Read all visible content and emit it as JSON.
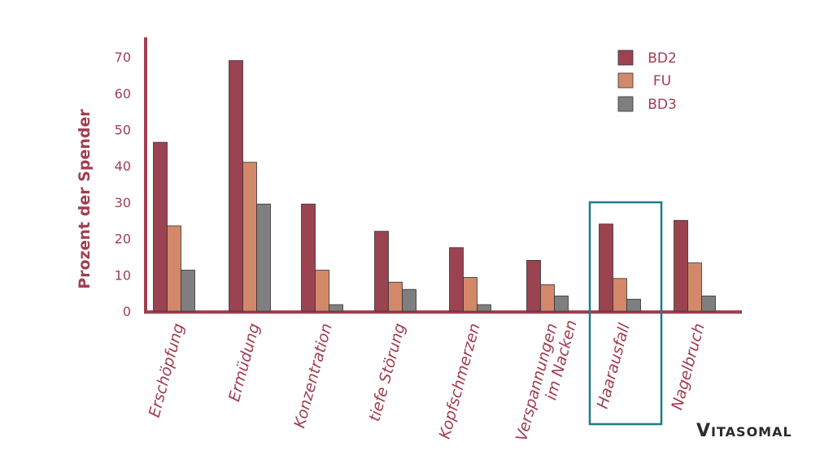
{
  "chart_data": {
    "type": "bar",
    "ylabel": "Prozent der Spender",
    "ylim": [
      0,
      75
    ],
    "yticks": [
      0,
      10,
      20,
      30,
      40,
      50,
      60,
      70
    ],
    "categories": [
      [
        "Erschöpfung"
      ],
      [
        "Ermüdung"
      ],
      [
        "Konzentration"
      ],
      [
        "tiefe Störung"
      ],
      [
        "Kopfschmerzen"
      ],
      [
        "Verspannungen",
        "im Nacken"
      ],
      [
        "Haarausfall"
      ],
      [
        "Nagelbruch"
      ]
    ],
    "series": [
      {
        "name": "BD2",
        "color": "#9b4350",
        "values": [
          46.5,
          69,
          29.5,
          22,
          17.5,
          14,
          24,
          25
        ]
      },
      {
        "name": "FU",
        "color": "#d4886a",
        "values": [
          23.5,
          41,
          11.3,
          8,
          9.3,
          7.3,
          9,
          13.3
        ]
      },
      {
        "name": "BD3",
        "color": "#7f7f7f",
        "values": [
          11.3,
          29.5,
          1.8,
          6,
          1.8,
          4.2,
          3.3,
          4.2
        ]
      }
    ],
    "legend_position": "top-right",
    "highlight_category": 6,
    "highlight_color": "#1f7b86",
    "axis_color": "#a13e52"
  },
  "logo": {
    "text": "VITASOMAL"
  }
}
